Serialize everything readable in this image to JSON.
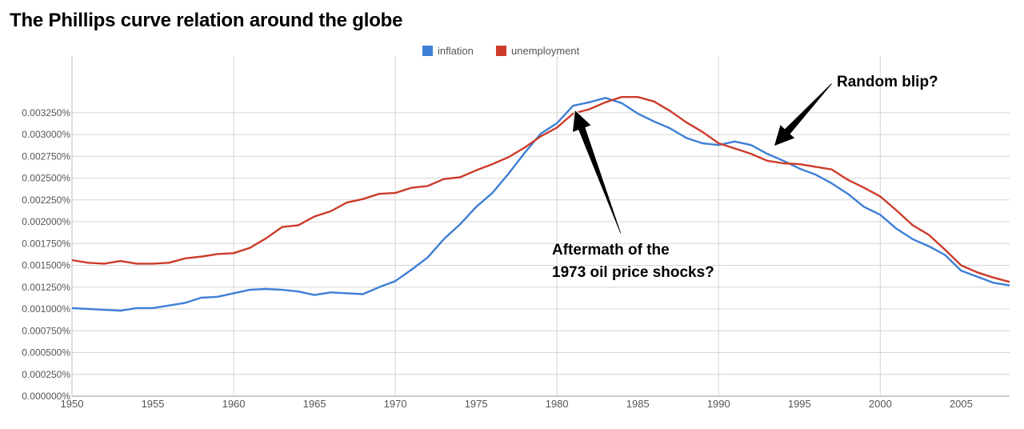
{
  "chart_data": {
    "type": "line",
    "title": "The Phillips curve relation around the globe",
    "xlabel": "",
    "ylabel": "",
    "xlim": [
      1950,
      2008
    ],
    "ylim": [
      0,
      0.0039
    ],
    "grid": true,
    "legend_position": "top-center",
    "x_ticks": [
      1950,
      1955,
      1960,
      1965,
      1970,
      1975,
      1980,
      1985,
      1990,
      1995,
      2000,
      2005
    ],
    "y_ticks": [
      "0.000000%",
      "0.000250%",
      "0.000500%",
      "0.000750%",
      "0.001000%",
      "0.001250%",
      "0.001500%",
      "0.001750%",
      "0.002000%",
      "0.002250%",
      "0.002500%",
      "0.002750%",
      "0.003000%",
      "0.003250%"
    ],
    "y_tick_values": [
      0,
      0.00025,
      0.0005,
      0.00075,
      0.001,
      0.00125,
      0.0015,
      0.00175,
      0.002,
      0.00225,
      0.0025,
      0.00275,
      0.003,
      0.00325
    ],
    "series": [
      {
        "name": "inflation",
        "color": "#3d7fd6",
        "x": [
          1950,
          1951,
          1952,
          1953,
          1954,
          1955,
          1956,
          1957,
          1958,
          1959,
          1960,
          1961,
          1962,
          1963,
          1964,
          1965,
          1966,
          1967,
          1968,
          1969,
          1970,
          1971,
          1972,
          1973,
          1974,
          1975,
          1976,
          1977,
          1978,
          1979,
          1980,
          1981,
          1982,
          1983,
          1984,
          1985,
          1986,
          1987,
          1988,
          1989,
          1990,
          1991,
          1992,
          1993,
          1994,
          1995,
          1996,
          1997,
          1998,
          1999,
          2000,
          2001,
          2002,
          2003,
          2004,
          2005,
          2006,
          2007,
          2008
        ],
        "values": [
          0.00101,
          0.001,
          0.00099,
          0.00098,
          0.00101,
          0.00101,
          0.00104,
          0.00107,
          0.00113,
          0.00114,
          0.00118,
          0.00122,
          0.00123,
          0.00122,
          0.0012,
          0.00116,
          0.00119,
          0.00118,
          0.00117,
          0.00125,
          0.00132,
          0.00145,
          0.00159,
          0.0018,
          0.00197,
          0.00217,
          0.00233,
          0.00255,
          0.00279,
          0.00301,
          0.00313,
          0.00333,
          0.00337,
          0.00342,
          0.00336,
          0.00324,
          0.00315,
          0.00307,
          0.00296,
          0.0029,
          0.00288,
          0.00292,
          0.00288,
          0.00278,
          0.0027,
          0.00261,
          0.00254,
          0.00244,
          0.00232,
          0.00217,
          0.00208,
          0.00192,
          0.0018,
          0.00172,
          0.00162,
          0.00144,
          0.00137,
          0.0013,
          0.00127
        ]
      },
      {
        "name": "unemployment",
        "color": "#cc3b2a",
        "x": [
          1950,
          1951,
          1952,
          1953,
          1954,
          1955,
          1956,
          1957,
          1958,
          1959,
          1960,
          1961,
          1962,
          1963,
          1964,
          1965,
          1966,
          1967,
          1968,
          1969,
          1970,
          1971,
          1972,
          1973,
          1974,
          1975,
          1976,
          1977,
          1978,
          1979,
          1980,
          1981,
          1982,
          1983,
          1984,
          1985,
          1986,
          1987,
          1988,
          1989,
          1990,
          1991,
          1992,
          1993,
          1994,
          1995,
          1996,
          1997,
          1998,
          1999,
          2000,
          2001,
          2002,
          2003,
          2004,
          2005,
          2006,
          2007,
          2008
        ],
        "values": [
          0.00156,
          0.00153,
          0.00152,
          0.00155,
          0.00152,
          0.00152,
          0.00153,
          0.00158,
          0.0016,
          0.00163,
          0.00164,
          0.0017,
          0.00181,
          0.00194,
          0.00196,
          0.00206,
          0.00212,
          0.00222,
          0.00226,
          0.00232,
          0.00233,
          0.00239,
          0.00241,
          0.00249,
          0.00251,
          0.00259,
          0.00266,
          0.00274,
          0.00285,
          0.00298,
          0.00308,
          0.00324,
          0.00329,
          0.00337,
          0.00343,
          0.00343,
          0.00338,
          0.00327,
          0.00314,
          0.00303,
          0.0029,
          0.00284,
          0.00278,
          0.0027,
          0.00267,
          0.00266,
          0.00263,
          0.0026,
          0.00248,
          0.00239,
          0.00229,
          0.00213,
          0.00196,
          0.00185,
          0.00168,
          0.0015,
          0.00142,
          0.00136,
          0.00131
        ]
      }
    ],
    "annotations": [
      {
        "id": "oil",
        "lines": [
          "Aftermath of the",
          "1973 oil price shocks?"
        ],
        "arrow_target_x": 1981,
        "arrow_target_y": 0.00325
      },
      {
        "id": "blip",
        "lines": [
          "Random blip?"
        ],
        "arrow_target_x": 1993.8,
        "arrow_target_y": 0.0029
      }
    ]
  }
}
